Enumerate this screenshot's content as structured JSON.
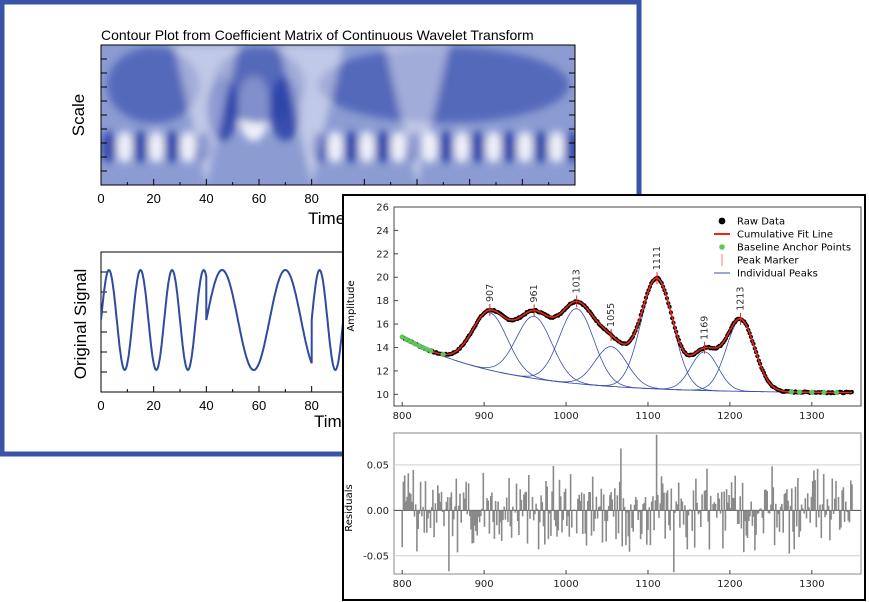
{
  "colors": {
    "frame_blue": "#3953a6",
    "contour_dark": "#2840a8",
    "contour_light": "#ffffff",
    "signal_line": "#2f4c9c",
    "fit_red": "#e8261c",
    "anchor_green": "#5cc85c",
    "peak_blue": "#3a4fae",
    "residual_gray": "#8a8a8a"
  },
  "chart_data": [
    {
      "type": "heatmap",
      "title": "Contour Plot from Coefficient Matrix of Continuous Wavelet Transform",
      "xlabel": "Time",
      "ylabel": "Scale",
      "xlim": [
        0,
        180
      ],
      "x_ticks": [
        "0",
        "20",
        "40",
        "60",
        "80"
      ],
      "colormap": [
        "#2840a8",
        "#ffffff"
      ]
    },
    {
      "type": "line",
      "xlabel": "Time",
      "ylabel": "Original Signal",
      "xlim": [
        0,
        180
      ],
      "x_ticks": [
        "0",
        "20",
        "40",
        "60",
        "80"
      ],
      "segments": [
        {
          "x_start": 0,
          "x_end": 40,
          "period": 12
        },
        {
          "x_start": 40,
          "x_end": 80,
          "period": 24
        },
        {
          "x_start": 80,
          "x_end": 180,
          "period": 12
        }
      ]
    },
    {
      "type": "line",
      "ylabel": "Amplitude",
      "xlim": [
        790,
        1360
      ],
      "ylim": [
        9,
        26
      ],
      "x_ticks": [
        "800",
        "900",
        "1000",
        "1100",
        "1200",
        "1300"
      ],
      "y_ticks": [
        "10",
        "12",
        "14",
        "16",
        "18",
        "20",
        "22",
        "24",
        "26"
      ],
      "legend": {
        "placement": "top-right",
        "entries": [
          "Raw Data",
          "Cumulative Fit Line",
          "Baseline Anchor Points",
          "Peak Marker",
          "Individual Peaks"
        ]
      },
      "baseline": {
        "at_800": 14.9,
        "at_1350": 10.1,
        "decay_width": 120
      },
      "peaks": [
        {
          "label": "907",
          "center": 907,
          "height": 4.9,
          "width": 30
        },
        {
          "label": "961",
          "center": 961,
          "height": 5.3,
          "width": 30
        },
        {
          "label": "1013",
          "center": 1013,
          "height": 6.4,
          "width": 29
        },
        {
          "label": "1055",
          "center": 1055,
          "height": 3.4,
          "width": 27
        },
        {
          "label": "1111",
          "center": 1111,
          "height": 9.4,
          "width": 27
        },
        {
          "label": "1169",
          "center": 1169,
          "height": 3.3,
          "width": 23
        },
        {
          "label": "1213",
          "center": 1213,
          "height": 6.1,
          "width": 24
        }
      ],
      "baseline_anchors_x": [
        800,
        805,
        810,
        815,
        820,
        825,
        830,
        835,
        850,
        1275,
        1285,
        1300,
        1315,
        1330
      ]
    },
    {
      "type": "bar",
      "ylabel": "Residuals",
      "xlim": [
        790,
        1360
      ],
      "ylim": [
        -0.07,
        0.085
      ],
      "x_ticks": [
        "800",
        "900",
        "1000",
        "1100",
        "1200",
        "1300"
      ],
      "y_ticks": [
        "0.05",
        "0.00",
        "-0.05"
      ],
      "x_start": 800,
      "x_step": 1.5,
      "amplitude": 0.05,
      "spikes": [
        {
          "x": 1110,
          "value": 0.083
        },
        {
          "x": 1132,
          "value": -0.068
        },
        {
          "x": 857,
          "value": -0.067
        },
        {
          "x": 1067,
          "value": 0.068
        }
      ]
    }
  ]
}
